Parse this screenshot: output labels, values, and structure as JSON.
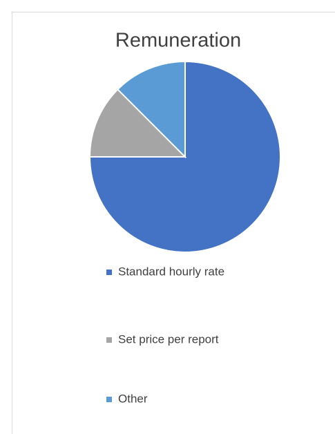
{
  "chart_data": {
    "type": "pie",
    "title": "Remuneration",
    "categories": [
      "Standard hourly rate",
      "Set price per report",
      "Other"
    ],
    "values": [
      75,
      12.5,
      12.5
    ],
    "colors": [
      "#4472c4",
      "#a5a5a5",
      "#5b9bd5"
    ],
    "legend": "bottom"
  }
}
